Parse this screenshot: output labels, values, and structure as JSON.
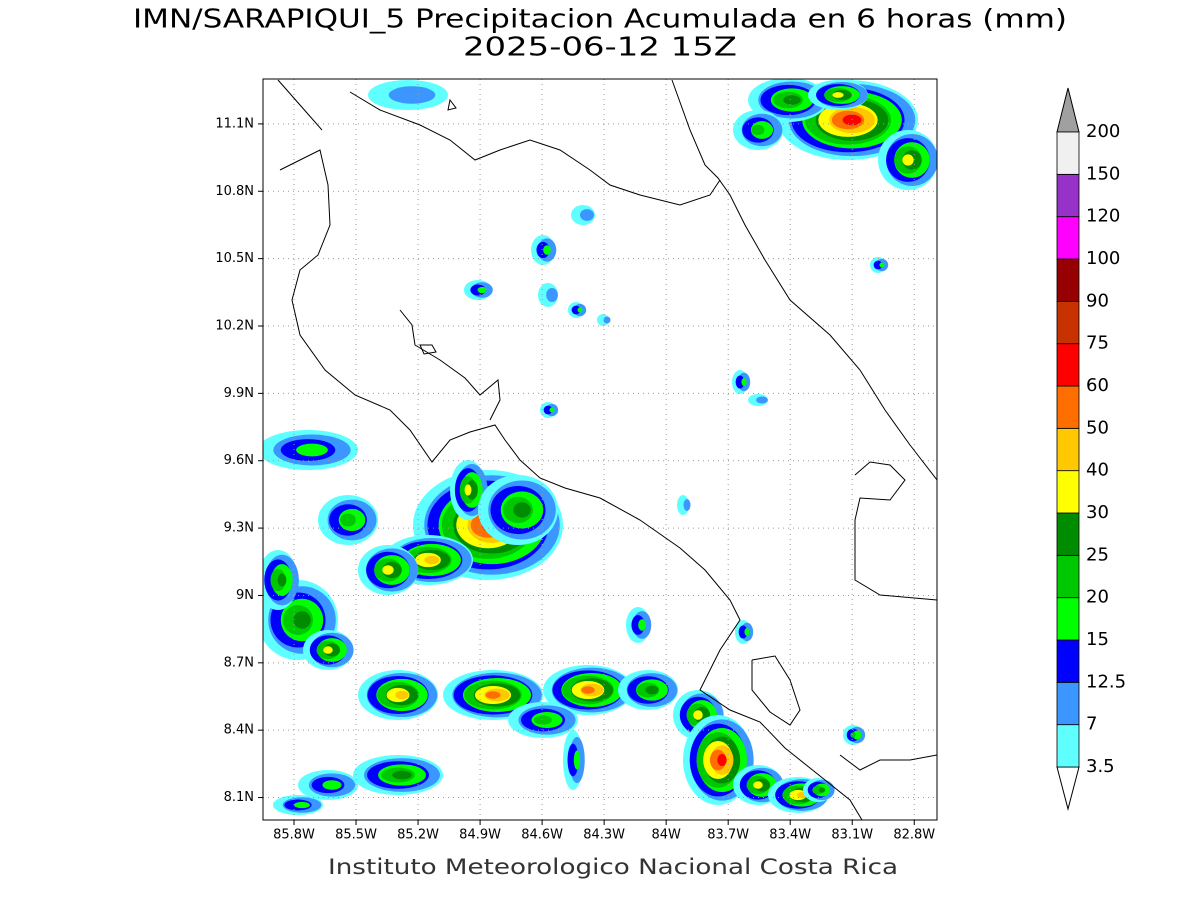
{
  "chart_data": {
    "type": "contour-map",
    "title": "IMN/SARAPIQUI_5 Precipitacion Acumulada en 6 horas (mm)",
    "subtitle": "2025-06-12 15Z",
    "footer": "Instituto Meteorologico Nacional Costa Rica",
    "xlim": [
      -85.95,
      -82.69
    ],
    "ylim": [
      8.0,
      11.3
    ],
    "xticks": [
      {
        "value": -85.8,
        "label": "85.8W"
      },
      {
        "value": -85.5,
        "label": "85.5W"
      },
      {
        "value": -85.2,
        "label": "85.2W"
      },
      {
        "value": -84.9,
        "label": "84.9W"
      },
      {
        "value": -84.6,
        "label": "84.6W"
      },
      {
        "value": -84.3,
        "label": "84.3W"
      },
      {
        "value": -84.0,
        "label": "84W"
      },
      {
        "value": -83.7,
        "label": "83.7W"
      },
      {
        "value": -83.4,
        "label": "83.4W"
      },
      {
        "value": -83.1,
        "label": "83.1W"
      },
      {
        "value": -82.8,
        "label": "82.8W"
      }
    ],
    "yticks": [
      {
        "value": 8.1,
        "label": "8.1N"
      },
      {
        "value": 8.4,
        "label": "8.4N"
      },
      {
        "value": 8.7,
        "label": "8.7N"
      },
      {
        "value": 9.0,
        "label": "9N"
      },
      {
        "value": 9.3,
        "label": "9.3N"
      },
      {
        "value": 9.6,
        "label": "9.6N"
      },
      {
        "value": 9.9,
        "label": "9.9N"
      },
      {
        "value": 10.2,
        "label": "10.2N"
      },
      {
        "value": 10.5,
        "label": "10.5N"
      },
      {
        "value": 10.8,
        "label": "10.8N"
      },
      {
        "value": 11.1,
        "label": "11.1N"
      }
    ],
    "grid": true,
    "colorbar": {
      "levels": [
        3.5,
        7,
        12.5,
        15,
        20,
        25,
        30,
        40,
        50,
        60,
        75,
        90,
        100,
        120,
        150,
        200
      ],
      "colors": [
        "#60ffff",
        "#3c96ff",
        "#0000ff",
        "#00ff00",
        "#00c800",
        "#008c00",
        "#ffff00",
        "#ffc800",
        "#ff6e00",
        "#ff0000",
        "#c83200",
        "#960000",
        "#ff00ff",
        "#9632c8",
        "#f0f0f0"
      ],
      "over_color": "#a0a0a0",
      "under_color": "#ffffff"
    }
  }
}
